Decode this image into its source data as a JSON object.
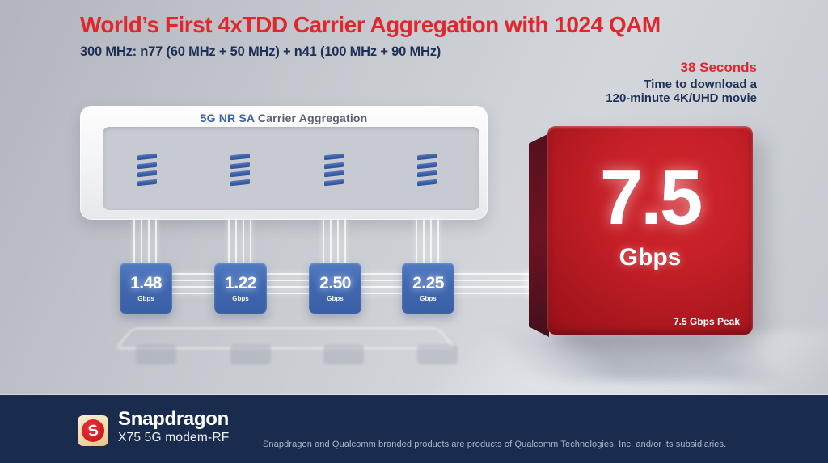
{
  "header": {
    "title": "World’s First 4xTDD Carrier Aggregation with 1024 QAM",
    "subtitle": "300 MHz: n77 (60 MHz + 50 MHz) + n41 (100 MHz + 90 MHz)"
  },
  "download_stat": {
    "highlight": "38 Seconds",
    "line1": "Time to download a",
    "line2": "120-minute 4K/UHD movie"
  },
  "aggregation_panel": {
    "title_primary": "5G NR SA",
    "title_secondary": "Carrier Aggregation",
    "antenna_group_count": 4
  },
  "carriers": [
    {
      "value": "1.48",
      "unit": "Gbps"
    },
    {
      "value": "1.22",
      "unit": "Gbps"
    },
    {
      "value": "2.50",
      "unit": "Gbps"
    },
    {
      "value": "2.25",
      "unit": "Gbps"
    }
  ],
  "total": {
    "value": "7.5",
    "unit": "Gbps",
    "note": "7.5 Gbps Peak"
  },
  "footer": {
    "brand": "Snapdragon",
    "product": "X75 5G modem-RF",
    "logo_letter": "S",
    "disclaimer": "Snapdragon and Qualcomm branded products are products of Qualcomm Technologies, Inc. and/or its subsidiaries."
  },
  "colors": {
    "accent_red": "#e2262c",
    "navy_text": "#1e3056",
    "carrier_blue": "#4068b0",
    "total_red": "#c41f27",
    "footer_navy": "#192c4e"
  }
}
